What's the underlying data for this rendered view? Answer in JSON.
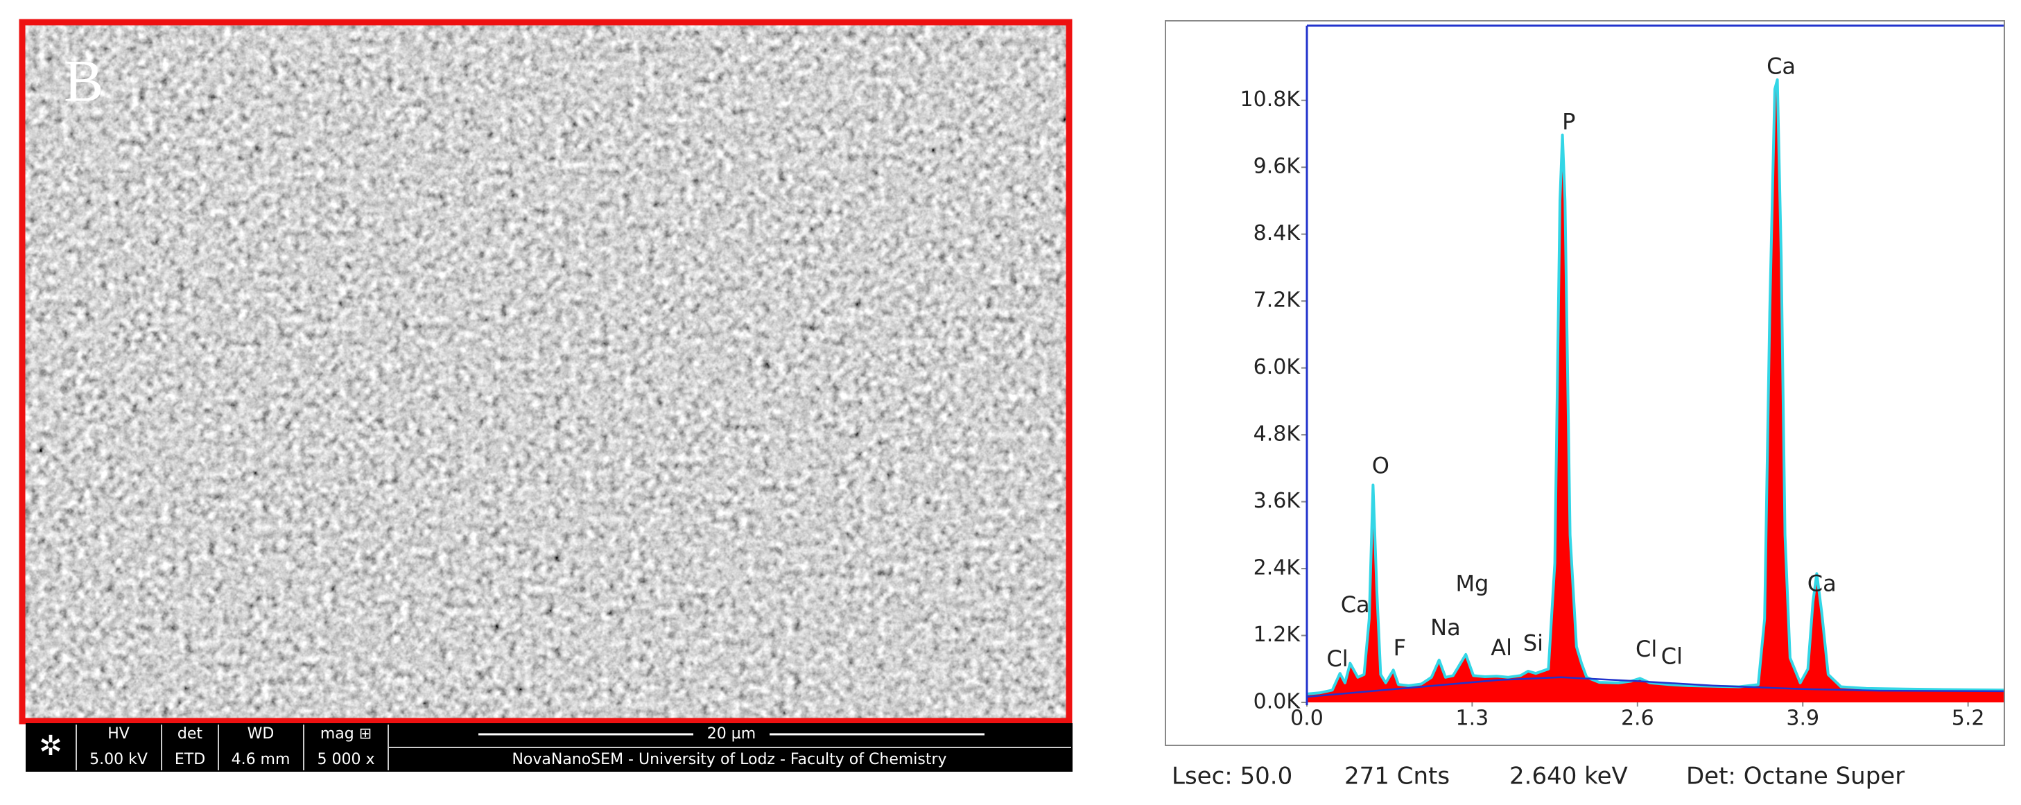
{
  "sem_panel": {
    "label": "B",
    "info_bar": {
      "hv_label": "HV",
      "hv_value": "5.00 kV",
      "det_label": "det",
      "det_value": "ETD",
      "wd_label": "WD",
      "wd_value": "4.6 mm",
      "mag_label": "mag ⊞",
      "mag_value": "5 000 x",
      "scale": "20 µm",
      "caption": "NovaNanoSEM - University of Lodz - Faculty of Chemistry"
    }
  },
  "chart_data": {
    "type": "area",
    "x": [
      0.0,
      0.1,
      0.2,
      0.26,
      0.3,
      0.34,
      0.4,
      0.45,
      0.49,
      0.52,
      0.55,
      0.58,
      0.62,
      0.68,
      0.72,
      0.8,
      0.9,
      0.98,
      1.04,
      1.09,
      1.15,
      1.25,
      1.31,
      1.4,
      1.49,
      1.58,
      1.68,
      1.74,
      1.8,
      1.9,
      1.95,
      1.99,
      2.01,
      2.03,
      2.07,
      2.12,
      2.16,
      2.2,
      2.3,
      2.45,
      2.55,
      2.62,
      2.7,
      2.85,
      3.0,
      3.2,
      3.4,
      3.55,
      3.6,
      3.64,
      3.68,
      3.7,
      3.73,
      3.76,
      3.8,
      3.88,
      3.94,
      3.98,
      4.01,
      4.05,
      4.1,
      4.2,
      4.4,
      4.7,
      5.0,
      5.48
    ],
    "series": [
      {
        "color": "#ff0000",
        "line_color": "#33d6e6",
        "values": [
          150,
          170,
          220,
          520,
          350,
          700,
          450,
          500,
          1500,
          3900,
          2000,
          500,
          350,
          580,
          320,
          300,
          330,
          450,
          760,
          450,
          480,
          860,
          480,
          460,
          470,
          450,
          480,
          560,
          520,
          600,
          2500,
          9000,
          10180,
          9000,
          3000,
          1000,
          700,
          450,
          360,
          350,
          380,
          430,
          350,
          320,
          300,
          290,
          280,
          320,
          1500,
          7000,
          11000,
          11170,
          8000,
          3000,
          800,
          350,
          600,
          1800,
          2310,
          1600,
          500,
          280,
          250,
          240,
          230,
          220
        ]
      }
    ],
    "background": {
      "color": "#2233cc",
      "x": [
        0.0,
        0.5,
        1.0,
        1.5,
        2.0,
        2.6,
        3.2,
        3.9,
        4.5,
        5.48
      ],
      "values": [
        100,
        200,
        300,
        400,
        450,
        380,
        300,
        240,
        210,
        200
      ]
    },
    "annotations": [
      {
        "text": "Cl",
        "x": 0.24,
        "y": 760
      },
      {
        "text": "Ca",
        "x": 0.38,
        "y": 1730
      },
      {
        "text": "O",
        "x": 0.58,
        "y": 4220
      },
      {
        "text": "F",
        "x": 0.73,
        "y": 960
      },
      {
        "text": "Na",
        "x": 1.09,
        "y": 1320
      },
      {
        "text": "Mg",
        "x": 1.3,
        "y": 2110
      },
      {
        "text": "Al",
        "x": 1.53,
        "y": 960
      },
      {
        "text": "Si",
        "x": 1.78,
        "y": 1040
      },
      {
        "text": "P",
        "x": 2.06,
        "y": 10390
      },
      {
        "text": "Cl",
        "x": 2.67,
        "y": 930
      },
      {
        "text": "Cl",
        "x": 2.87,
        "y": 800
      },
      {
        "text": "Ca",
        "x": 3.73,
        "y": 11390
      },
      {
        "text": "Ca",
        "x": 4.05,
        "y": 2110
      }
    ],
    "xlim": [
      0,
      5.48
    ],
    "ylim": [
      0,
      12140
    ],
    "xticks": [
      {
        "value": 0,
        "label": "0.0"
      },
      1.3,
      2.6,
      3.9,
      5.2
    ],
    "yticks": [
      {
        "value": 0,
        "label": "0.0K"
      },
      {
        "value": 1200,
        "label": "1.2K"
      },
      {
        "value": 2400,
        "label": "2.4K"
      },
      {
        "value": 3600,
        "label": "3.6K"
      },
      {
        "value": 4800,
        "label": "4.8K"
      },
      {
        "value": 6000,
        "label": "6.0K"
      },
      {
        "value": 7200,
        "label": "7.2K"
      },
      {
        "value": 8400,
        "label": "8.4K"
      },
      {
        "value": 9600,
        "label": "9.6K"
      },
      {
        "value": 10800,
        "label": "10.8K"
      }
    ],
    "grid": false,
    "footer": [
      "Lsec: 50.0",
      "271 Cnts",
      "2.640 keV",
      "Det: Octane Super"
    ]
  }
}
